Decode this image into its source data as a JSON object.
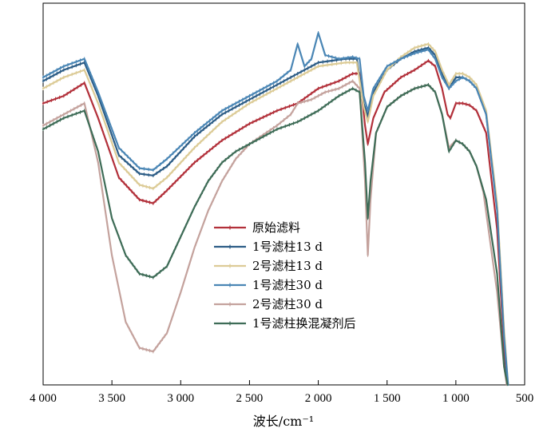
{
  "chart_data": {
    "type": "line",
    "title": "",
    "xlabel": "波长/cm⁻¹",
    "ylabel": "",
    "xlim": [
      4000,
      500
    ],
    "ylim": [
      0,
      100
    ],
    "x_reversed": true,
    "xticks": [
      4000,
      3500,
      3000,
      2500,
      2000,
      1500,
      1000,
      500
    ],
    "xtick_labels": [
      "4 000",
      "3 500",
      "3 000",
      "2 500",
      "2 000",
      "1 500",
      "1 000",
      "500"
    ],
    "grid": false,
    "legend_position": "center",
    "series": [
      {
        "name": "原始滤料",
        "color": "#b2303a",
        "points": [
          [
            4000,
            76
          ],
          [
            3850,
            78
          ],
          [
            3700,
            81.5
          ],
          [
            3600,
            72
          ],
          [
            3450,
            56
          ],
          [
            3300,
            50
          ],
          [
            3200,
            49
          ],
          [
            3100,
            52.5
          ],
          [
            2900,
            60
          ],
          [
            2700,
            66
          ],
          [
            2500,
            70.5
          ],
          [
            2300,
            74
          ],
          [
            2150,
            76
          ],
          [
            2000,
            80
          ],
          [
            1850,
            82
          ],
          [
            1750,
            84
          ],
          [
            1700,
            84
          ],
          [
            1660,
            70
          ],
          [
            1640,
            65
          ],
          [
            1600,
            72
          ],
          [
            1520,
            79
          ],
          [
            1400,
            83
          ],
          [
            1300,
            85
          ],
          [
            1200,
            87.5
          ],
          [
            1150,
            86
          ],
          [
            1100,
            80
          ],
          [
            1060,
            73
          ],
          [
            1040,
            72
          ],
          [
            1000,
            76
          ],
          [
            950,
            76
          ],
          [
            900,
            75.5
          ],
          [
            850,
            74
          ],
          [
            780,
            68
          ],
          [
            700,
            42
          ],
          [
            650,
            10
          ],
          [
            630,
            0
          ]
        ]
      },
      {
        "name": "1号滤柱13 d",
        "color": "#2d5d86",
        "points": [
          [
            4000,
            82
          ],
          [
            3850,
            85
          ],
          [
            3700,
            87
          ],
          [
            3600,
            78
          ],
          [
            3450,
            62
          ],
          [
            3300,
            57
          ],
          [
            3200,
            56.5
          ],
          [
            3100,
            59
          ],
          [
            2900,
            67
          ],
          [
            2700,
            73
          ],
          [
            2500,
            77
          ],
          [
            2300,
            81
          ],
          [
            2150,
            84
          ],
          [
            2050,
            86
          ],
          [
            2000,
            87
          ],
          [
            1900,
            87.5
          ],
          [
            1800,
            88
          ],
          [
            1720,
            88
          ],
          [
            1670,
            76
          ],
          [
            1640,
            72.5
          ],
          [
            1600,
            79
          ],
          [
            1500,
            85
          ],
          [
            1400,
            88
          ],
          [
            1300,
            90
          ],
          [
            1200,
            91
          ],
          [
            1150,
            89
          ],
          [
            1100,
            84
          ],
          [
            1050,
            80
          ],
          [
            1000,
            83
          ],
          [
            950,
            83
          ],
          [
            900,
            82
          ],
          [
            850,
            80
          ],
          [
            780,
            73
          ],
          [
            700,
            48
          ],
          [
            650,
            14
          ],
          [
            625,
            0
          ]
        ]
      },
      {
        "name": "2号滤柱13 d",
        "color": "#dccb96",
        "points": [
          [
            4000,
            80
          ],
          [
            3850,
            83
          ],
          [
            3700,
            85
          ],
          [
            3600,
            76
          ],
          [
            3450,
            60
          ],
          [
            3300,
            54
          ],
          [
            3200,
            53
          ],
          [
            3100,
            56
          ],
          [
            2900,
            64
          ],
          [
            2700,
            71
          ],
          [
            2500,
            76
          ],
          [
            2300,
            80
          ],
          [
            2150,
            83
          ],
          [
            2050,
            85
          ],
          [
            2000,
            86
          ],
          [
            1900,
            86.5
          ],
          [
            1800,
            87
          ],
          [
            1720,
            87
          ],
          [
            1670,
            75
          ],
          [
            1640,
            71
          ],
          [
            1600,
            78
          ],
          [
            1500,
            85
          ],
          [
            1400,
            88.5
          ],
          [
            1300,
            91
          ],
          [
            1200,
            92
          ],
          [
            1150,
            90
          ],
          [
            1100,
            85
          ],
          [
            1050,
            81
          ],
          [
            1000,
            84
          ],
          [
            950,
            84
          ],
          [
            900,
            83
          ],
          [
            850,
            81
          ],
          [
            780,
            74
          ],
          [
            700,
            49
          ],
          [
            650,
            15
          ],
          [
            620,
            0
          ]
        ]
      },
      {
        "name": "1号滤柱30 d",
        "color": "#4a86b5",
        "points": [
          [
            4000,
            83
          ],
          [
            3850,
            86
          ],
          [
            3700,
            88
          ],
          [
            3600,
            79
          ],
          [
            3450,
            64
          ],
          [
            3300,
            58.5
          ],
          [
            3200,
            58
          ],
          [
            3100,
            61
          ],
          [
            2900,
            68
          ],
          [
            2700,
            74
          ],
          [
            2500,
            78
          ],
          [
            2300,
            82
          ],
          [
            2200,
            85
          ],
          [
            2150,
            92
          ],
          [
            2100,
            86
          ],
          [
            2050,
            88
          ],
          [
            2000,
            95
          ],
          [
            1950,
            89
          ],
          [
            1850,
            88
          ],
          [
            1750,
            88.5
          ],
          [
            1700,
            88
          ],
          [
            1670,
            78
          ],
          [
            1640,
            74
          ],
          [
            1600,
            80
          ],
          [
            1500,
            86
          ],
          [
            1400,
            88
          ],
          [
            1300,
            89.5
          ],
          [
            1200,
            90.5
          ],
          [
            1150,
            88
          ],
          [
            1100,
            83
          ],
          [
            1050,
            80
          ],
          [
            1000,
            82
          ],
          [
            950,
            83
          ],
          [
            900,
            82
          ],
          [
            850,
            80
          ],
          [
            780,
            73
          ],
          [
            700,
            47
          ],
          [
            650,
            13
          ],
          [
            620,
            0
          ]
        ]
      },
      {
        "name": "2号滤柱30 d",
        "color": "#c4a29d",
        "points": [
          [
            4000,
            70
          ],
          [
            3850,
            73
          ],
          [
            3700,
            76
          ],
          [
            3600,
            60
          ],
          [
            3500,
            35
          ],
          [
            3400,
            17
          ],
          [
            3300,
            10
          ],
          [
            3200,
            9
          ],
          [
            3100,
            14
          ],
          [
            3000,
            25
          ],
          [
            2900,
            37
          ],
          [
            2800,
            47
          ],
          [
            2700,
            55
          ],
          [
            2600,
            61
          ],
          [
            2500,
            65
          ],
          [
            2300,
            70
          ],
          [
            2200,
            73
          ],
          [
            2150,
            76
          ],
          [
            2050,
            77
          ],
          [
            1950,
            79
          ],
          [
            1850,
            80
          ],
          [
            1750,
            82
          ],
          [
            1700,
            80
          ],
          [
            1660,
            55
          ],
          [
            1640,
            35
          ],
          [
            1620,
            50
          ],
          [
            1580,
            68
          ],
          [
            1500,
            75
          ],
          [
            1400,
            78
          ],
          [
            1300,
            80
          ],
          [
            1200,
            81
          ],
          [
            1150,
            79
          ],
          [
            1100,
            73
          ],
          [
            1050,
            64
          ],
          [
            1000,
            66
          ],
          [
            950,
            65
          ],
          [
            900,
            63
          ],
          [
            850,
            59
          ],
          [
            800,
            52
          ],
          [
            700,
            25
          ],
          [
            650,
            5
          ],
          [
            630,
            0
          ]
        ]
      },
      {
        "name": "1号滤柱换混凝剂后",
        "color": "#3e6c57",
        "points": [
          [
            4000,
            69
          ],
          [
            3850,
            72
          ],
          [
            3700,
            74
          ],
          [
            3600,
            63
          ],
          [
            3500,
            45
          ],
          [
            3400,
            35
          ],
          [
            3300,
            30
          ],
          [
            3200,
            29
          ],
          [
            3100,
            32
          ],
          [
            3000,
            40
          ],
          [
            2900,
            48
          ],
          [
            2800,
            55
          ],
          [
            2700,
            60
          ],
          [
            2600,
            63
          ],
          [
            2500,
            65
          ],
          [
            2300,
            69
          ],
          [
            2150,
            71
          ],
          [
            2000,
            74
          ],
          [
            1850,
            78
          ],
          [
            1750,
            80
          ],
          [
            1700,
            79
          ],
          [
            1660,
            60
          ],
          [
            1640,
            45
          ],
          [
            1620,
            55
          ],
          [
            1580,
            68
          ],
          [
            1500,
            75
          ],
          [
            1400,
            78
          ],
          [
            1300,
            80
          ],
          [
            1200,
            81
          ],
          [
            1150,
            79
          ],
          [
            1100,
            73
          ],
          [
            1050,
            63
          ],
          [
            1000,
            66
          ],
          [
            950,
            65
          ],
          [
            900,
            63
          ],
          [
            850,
            59
          ],
          [
            780,
            50
          ],
          [
            700,
            30
          ],
          [
            650,
            5
          ],
          [
            625,
            0
          ]
        ]
      }
    ]
  }
}
